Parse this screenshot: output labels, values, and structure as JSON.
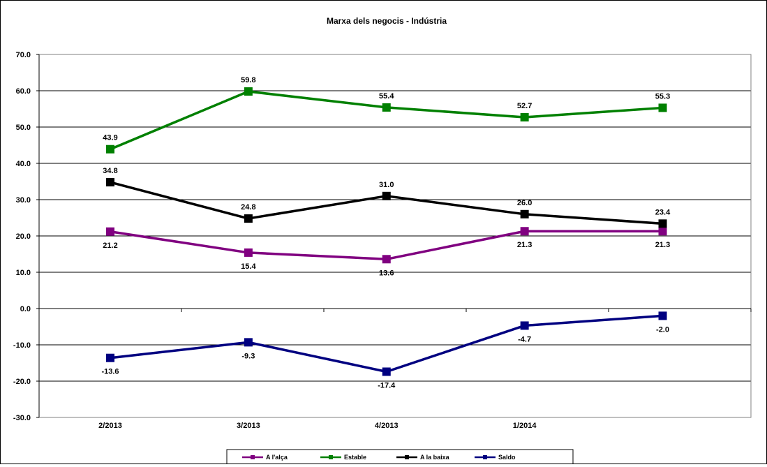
{
  "chart_data": {
    "type": "line",
    "title": "Marxa dels negocis - Indústria",
    "categories": [
      "2/2013",
      "3/2013",
      "4/2013",
      "1/2014",
      ""
    ],
    "ylim": [
      -30,
      70
    ],
    "yticks": [
      "70.0",
      "60.0",
      "50.0",
      "40.0",
      "30.0",
      "20.0",
      "10.0",
      "0.0",
      "-10.0",
      "-20.0",
      "-30.0"
    ],
    "grid": true,
    "legend_position": "bottom",
    "series": [
      {
        "name": "A l'alça",
        "color": "#800080",
        "values": [
          21.2,
          15.4,
          13.6,
          21.3,
          21.3
        ],
        "labels": [
          "21.2",
          "15.4",
          "13.6",
          "21.3",
          "21.3"
        ],
        "label_pos": "below"
      },
      {
        "name": "Estable",
        "color": "#008000",
        "values": [
          43.9,
          59.8,
          55.4,
          52.7,
          55.3
        ],
        "labels": [
          "43.9",
          "59.8",
          "55.4",
          "52.7",
          "55.3"
        ],
        "label_pos": "above"
      },
      {
        "name": "A la baixa",
        "color": "#000000",
        "values": [
          34.8,
          24.8,
          31.0,
          26.0,
          23.4
        ],
        "labels": [
          "34.8",
          "24.8",
          "31.0",
          "26.0",
          "23.4"
        ],
        "label_pos": "above"
      },
      {
        "name": "Saldo",
        "color": "#000080",
        "values": [
          -13.6,
          -9.3,
          -17.4,
          -4.7,
          -2.0
        ],
        "labels": [
          "-13.6",
          "-9.3",
          "-17.4",
          "-4.7",
          "-2.0"
        ],
        "label_pos": "below"
      }
    ]
  }
}
